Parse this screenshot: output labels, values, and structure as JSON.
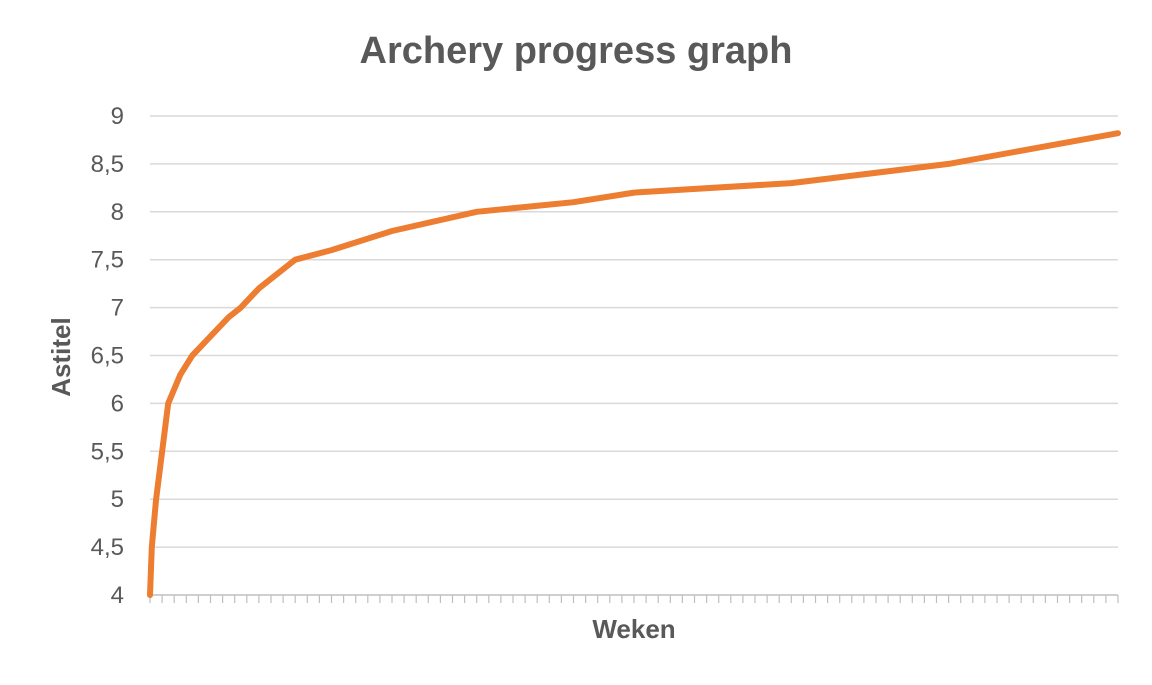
{
  "chart_data": {
    "type": "line",
    "title": "Archery progress graph",
    "xlabel": "Weken",
    "ylabel": "Astitel",
    "ylim": [
      4,
      9
    ],
    "yticks": [
      4,
      4.5,
      5,
      5.5,
      6,
      6.5,
      7,
      7.5,
      8,
      8.5,
      9
    ],
    "ytick_labels": [
      "4",
      "4,5",
      "5",
      "5,5",
      "6",
      "6,5",
      "7",
      "7,5",
      "8",
      "8,5",
      "9"
    ],
    "x_tick_count": 80,
    "grid": true,
    "legend": "none",
    "series": [
      {
        "color": "#ED7D31",
        "x": [
          0,
          0.15,
          0.5,
          1.5,
          2.5,
          3.5,
          5,
          6.5,
          7.5,
          9,
          12,
          15,
          20,
          27,
          35,
          40,
          53,
          66,
          80
        ],
        "y": [
          4,
          4.5,
          5,
          6,
          6.3,
          6.5,
          6.7,
          6.9,
          7.0,
          7.2,
          7.5,
          7.6,
          7.8,
          8.0,
          8.1,
          8.2,
          8.3,
          8.5,
          8.82
        ]
      }
    ]
  }
}
